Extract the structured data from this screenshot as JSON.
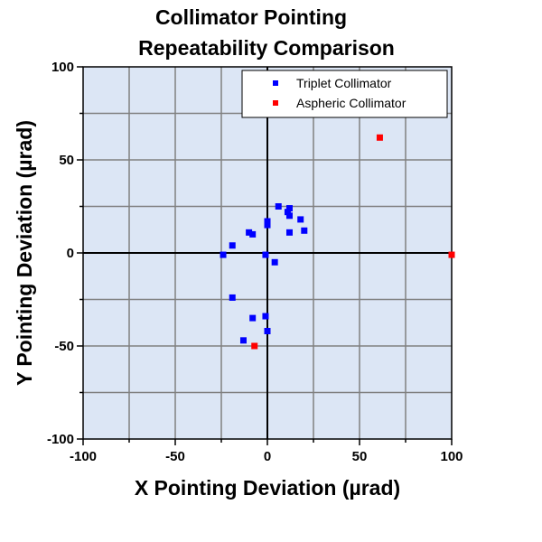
{
  "chart_data": {
    "type": "scatter",
    "title_lines": [
      "Collimator Pointing",
      "Repeatability Comparison"
    ],
    "xlabel": "X Pointing Deviation (µrad)",
    "ylabel": "Y Pointing Deviation (µrad)",
    "xlim": [
      -100,
      100
    ],
    "ylim": [
      -100,
      100
    ],
    "x_ticks": [
      -100,
      -50,
      0,
      50,
      100
    ],
    "y_ticks": [
      -100,
      -50,
      0,
      50,
      100
    ],
    "x_tick_labels": [
      "-100",
      "-50",
      "0",
      "50",
      "100"
    ],
    "y_tick_labels": [
      "-100",
      "-50",
      "0",
      "50",
      "100"
    ],
    "grid": true,
    "legend_position": "top-right",
    "series": [
      {
        "name": "Triplet Collimator",
        "color": "#0000ff",
        "x": [
          6,
          12,
          11,
          12,
          18,
          20,
          12,
          0,
          0,
          -10,
          -8,
          -19,
          -24,
          -1,
          4,
          -19,
          -8,
          -1,
          0,
          -13
        ],
        "y": [
          25,
          24,
          22,
          20,
          18,
          12,
          11,
          17,
          15,
          11,
          10,
          4,
          -1,
          -1,
          -5,
          -24,
          -35,
          -34,
          -42,
          -47
        ]
      },
      {
        "name": "Aspheric Collimator",
        "color": "#ff0000",
        "x": [
          61,
          100,
          -7
        ],
        "y": [
          62,
          -1,
          -50
        ]
      }
    ]
  }
}
